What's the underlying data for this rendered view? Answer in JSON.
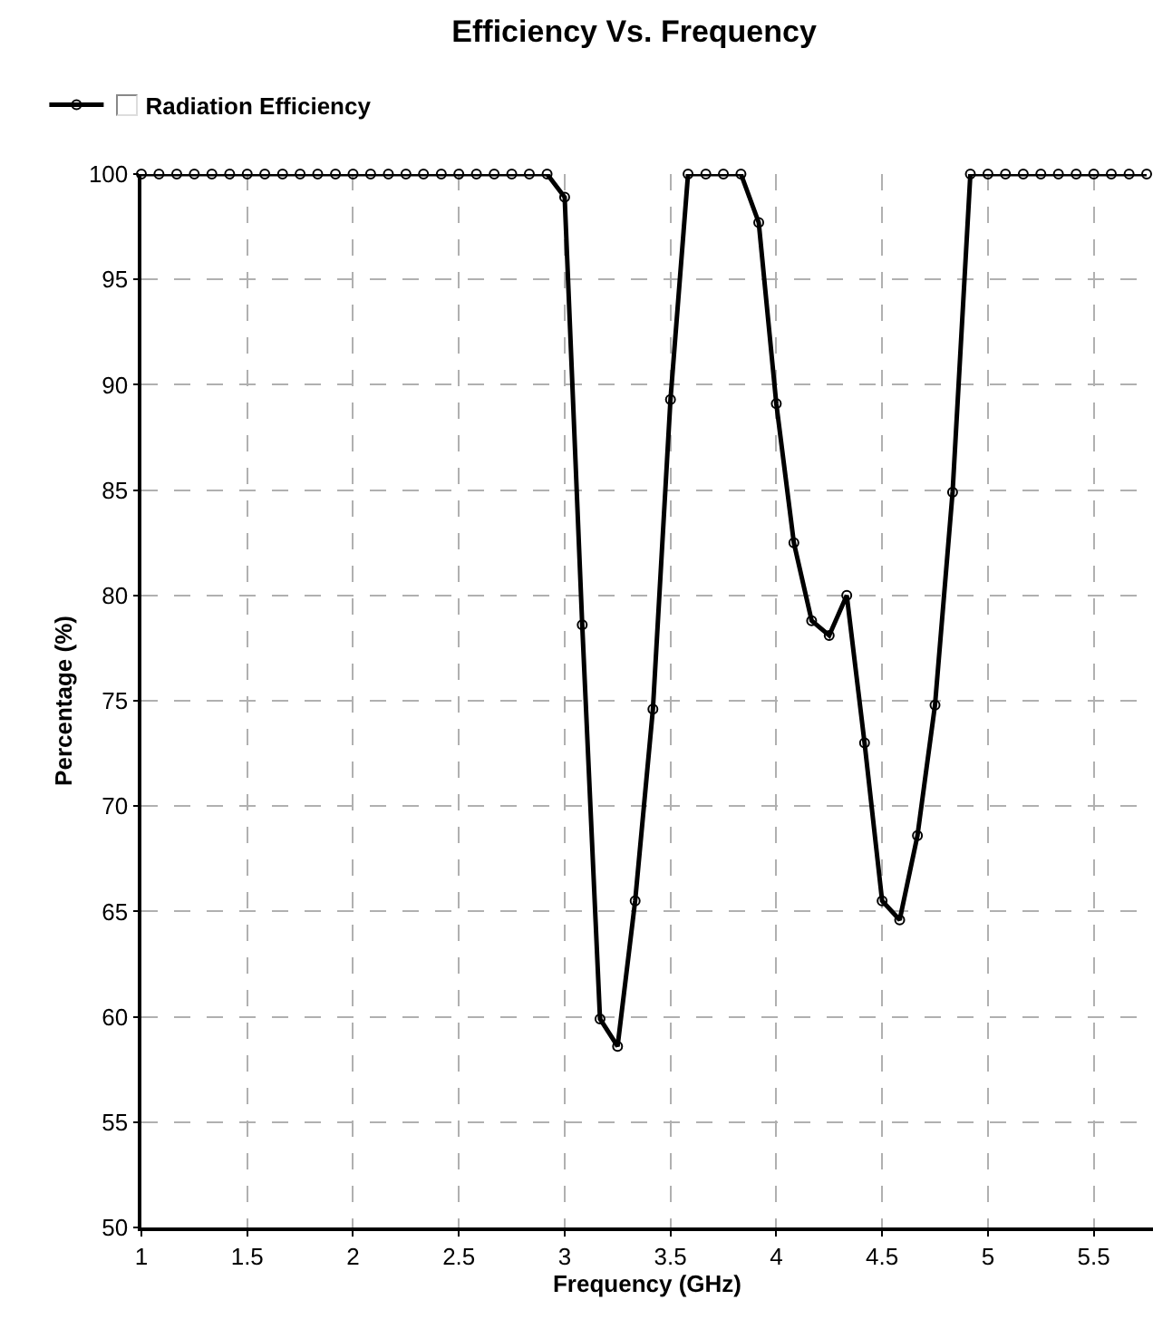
{
  "chart_data": {
    "type": "line",
    "title": "Efficiency Vs. Frequency",
    "xlabel": "Frequency (GHz)",
    "ylabel": "Percentage (%)",
    "x": [
      1,
      1.083,
      1.167,
      1.25,
      1.333,
      1.417,
      1.5,
      1.583,
      1.667,
      1.75,
      1.833,
      1.917,
      2,
      2.083,
      2.167,
      2.25,
      2.333,
      2.417,
      2.5,
      2.583,
      2.667,
      2.75,
      2.833,
      2.917,
      3,
      3.083,
      3.167,
      3.25,
      3.333,
      3.417,
      3.5,
      3.583,
      3.667,
      3.75,
      3.833,
      3.917,
      4,
      4.083,
      4.167,
      4.25,
      4.333,
      4.417,
      4.5,
      4.583,
      4.667,
      4.75,
      4.833,
      4.917,
      5,
      5.083,
      5.167,
      5.25,
      5.333,
      5.417,
      5.5,
      5.583,
      5.667,
      5.75
    ],
    "series": [
      {
        "name": "Radiation Efficiency",
        "color": "#000000",
        "values": [
          100,
          100,
          100,
          100,
          100,
          100,
          100,
          100,
          100,
          100,
          100,
          100,
          100,
          100,
          100,
          100,
          100,
          100,
          100,
          100,
          100,
          100,
          100,
          100,
          98.9,
          78.6,
          59.9,
          58.6,
          65.5,
          74.6,
          89.3,
          100,
          100,
          100,
          100,
          97.7,
          89.1,
          82.5,
          78.8,
          78.1,
          80.0,
          73.0,
          65.5,
          64.6,
          68.6,
          74.8,
          84.9,
          100,
          100,
          100,
          100,
          100,
          100,
          100,
          100,
          100,
          100,
          100
        ]
      }
    ],
    "xlim": [
      1,
      5.78
    ],
    "xticks": [
      1,
      1.5,
      2,
      2.5,
      3,
      3.5,
      4,
      4.5,
      5,
      5.5
    ],
    "ylim": [
      50,
      100
    ],
    "yticks": [
      50,
      55,
      60,
      65,
      70,
      75,
      80,
      85,
      90,
      95,
      100
    ],
    "grid": true,
    "legend": "top left",
    "marker": "circle",
    "line_style": "solid"
  }
}
